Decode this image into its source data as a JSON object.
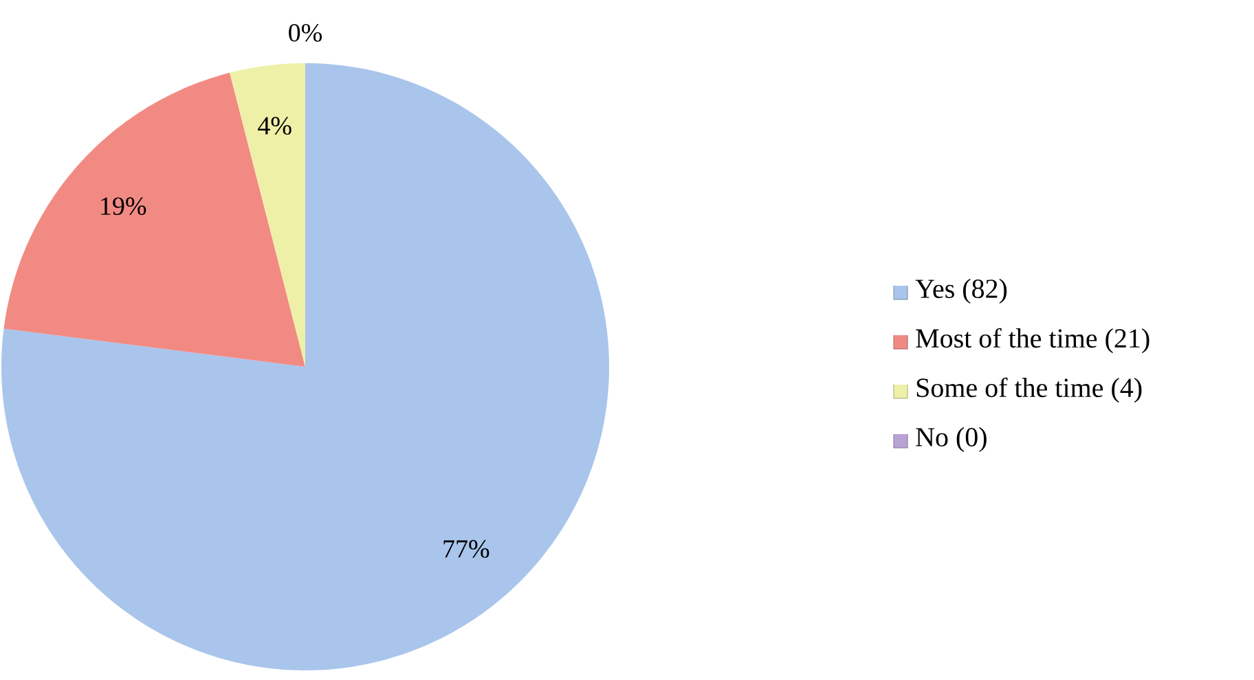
{
  "chart_data": {
    "type": "pie",
    "categories": [
      "Yes (82)",
      "Most of the time (21)",
      "Some of the time (4)",
      "No (0)"
    ],
    "values": [
      77,
      19,
      4,
      0
    ],
    "value_labels": [
      "77%",
      "19%",
      "4%",
      "0%"
    ],
    "colors": [
      "#a9c5ec",
      "#f28a84",
      "#eef0a8",
      "#b9a3d6"
    ],
    "legend": "right"
  }
}
